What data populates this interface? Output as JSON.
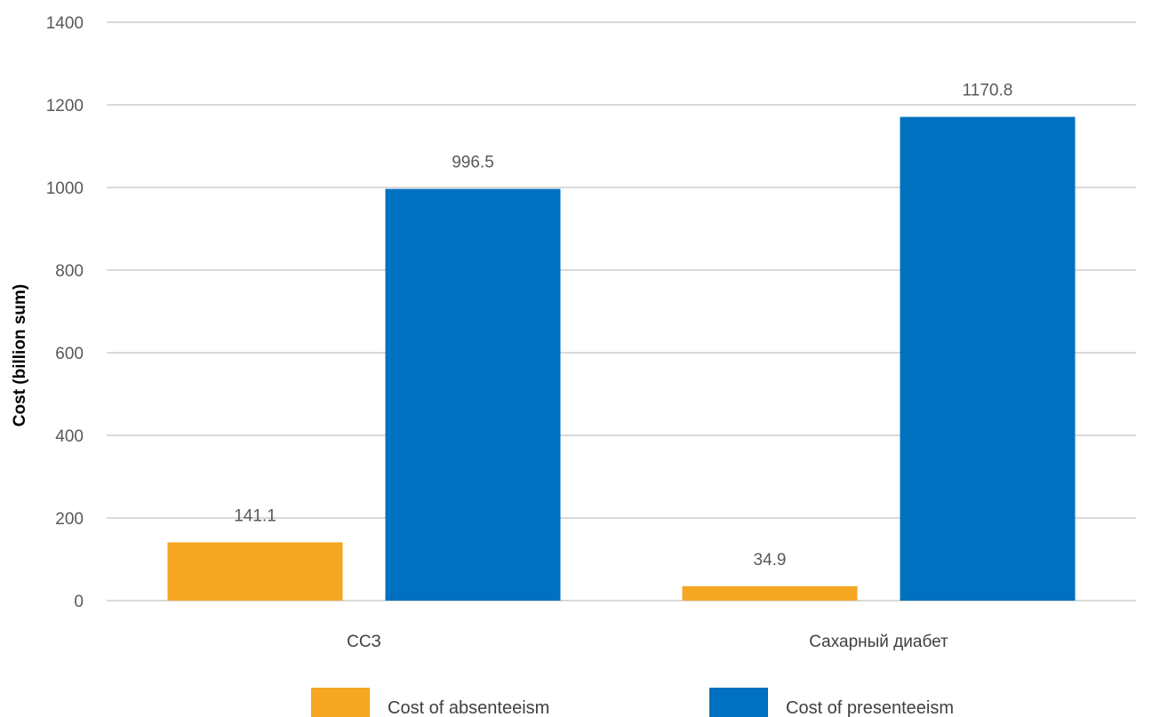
{
  "chart_data": {
    "type": "bar",
    "categories": [
      "ССЗ",
      "Сахарный диабет"
    ],
    "series": [
      {
        "name": "Cost of absenteeism",
        "values": [
          141.1,
          34.9
        ],
        "color": "#F5A623"
      },
      {
        "name": "Cost of presenteeism",
        "values": [
          996.5,
          1170.8
        ],
        "color": "#0070C0"
      }
    ],
    "ylabel": "Cost (billion sum)",
    "xlabel": "",
    "ylim": [
      0,
      1400
    ],
    "yticks": [
      0,
      200,
      400,
      600,
      800,
      1000,
      1200,
      1400
    ],
    "data_labels": true,
    "grid": true,
    "legend": "bottom"
  }
}
